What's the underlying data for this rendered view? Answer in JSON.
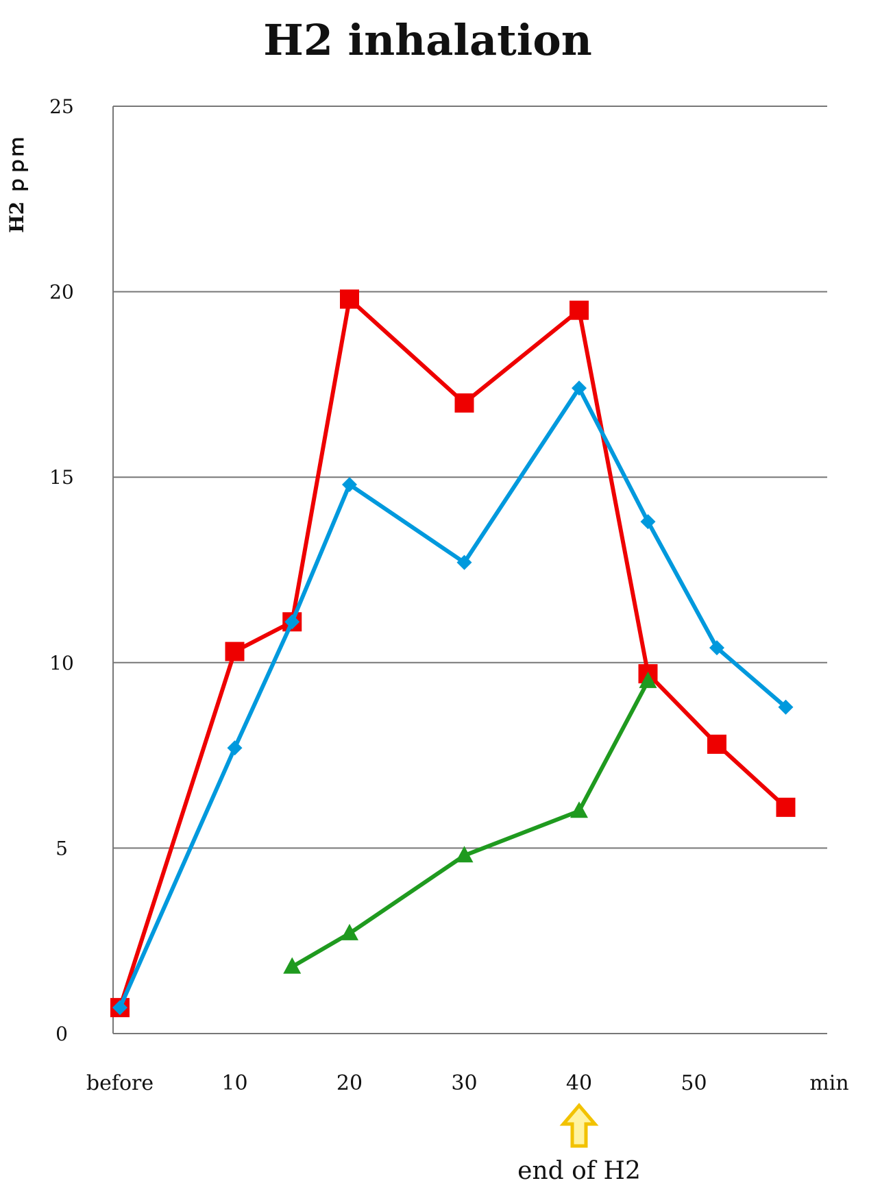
{
  "chart_data": {
    "type": "line",
    "title": "H2 inhalation",
    "ylabel": "H2 ｐｐｍ",
    "xlabel": "min",
    "ylim": [
      0,
      25
    ],
    "yticks": [
      0,
      5,
      10,
      15,
      20,
      25
    ],
    "xlim": [
      0,
      60
    ],
    "xticks": [
      {
        "value": 0,
        "label": "before"
      },
      {
        "value": 10,
        "label": "10"
      },
      {
        "value": 20,
        "label": "20"
      },
      {
        "value": 30,
        "label": "30"
      },
      {
        "value": 40,
        "label": "40"
      },
      {
        "value": 50,
        "label": "50"
      }
    ],
    "grid": true,
    "annotation": {
      "text": "end of H2",
      "x": 40,
      "arrow_color": "#f2c200"
    },
    "series": [
      {
        "color": "#ee0000",
        "marker": "square",
        "x": [
          0,
          10,
          15,
          20,
          30,
          40,
          46,
          52,
          58
        ],
        "values": [
          0.7,
          10.3,
          11.1,
          19.8,
          17.0,
          19.5,
          9.7,
          7.8,
          6.1
        ]
      },
      {
        "color": "#0099dd",
        "marker": "diamond",
        "x": [
          0,
          10,
          15,
          20,
          30,
          40,
          46,
          52,
          58
        ],
        "values": [
          0.7,
          7.7,
          11.1,
          14.8,
          12.7,
          17.4,
          13.8,
          10.4,
          8.8
        ]
      },
      {
        "color": "#1f9a1f",
        "marker": "triangle",
        "x": [
          15,
          20,
          30,
          40,
          46
        ],
        "values": [
          1.8,
          2.7,
          4.8,
          6.0,
          9.5
        ]
      }
    ]
  }
}
